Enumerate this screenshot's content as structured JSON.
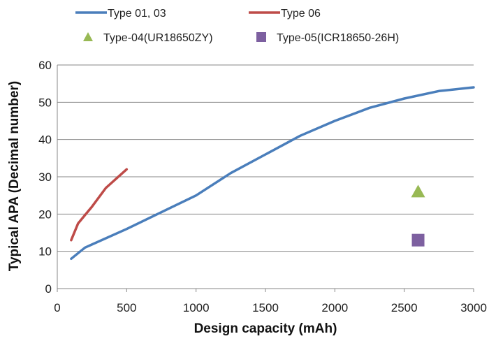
{
  "chart_data": {
    "type": "line",
    "title": "",
    "xlabel": "Design capacity  (mAh)",
    "ylabel": "Typical APA (Decimal number)",
    "xlim": [
      0,
      3000
    ],
    "ylim": [
      0,
      60
    ],
    "xticks": [
      0,
      500,
      1000,
      1500,
      2000,
      2500,
      3000
    ],
    "yticks": [
      0,
      10,
      20,
      30,
      40,
      50,
      60
    ],
    "grid": "horizontal",
    "legend_position": "top",
    "series": [
      {
        "name": "Type 01, 03",
        "kind": "line",
        "color": "#4a7ebb",
        "x": [
          100,
          200,
          500,
          1000,
          1250,
          1500,
          1750,
          2000,
          2250,
          2500,
          2750,
          3000
        ],
        "y": [
          8,
          11,
          16,
          25,
          31,
          36,
          41,
          45,
          48.5,
          51,
          53,
          54
        ]
      },
      {
        "name": "Type 06",
        "kind": "line",
        "color": "#be4b48",
        "x": [
          100,
          150,
          250,
          350,
          500
        ],
        "y": [
          13,
          17.5,
          22,
          27,
          32
        ]
      },
      {
        "name": "Type-04(UR18650ZY)",
        "kind": "triangle",
        "color": "#98b954",
        "x": [
          2600
        ],
        "y": [
          26
        ]
      },
      {
        "name": "Type-05(ICR18650-26H)",
        "kind": "square",
        "color": "#7d60a0",
        "x": [
          2600
        ],
        "y": [
          13
        ]
      }
    ]
  }
}
